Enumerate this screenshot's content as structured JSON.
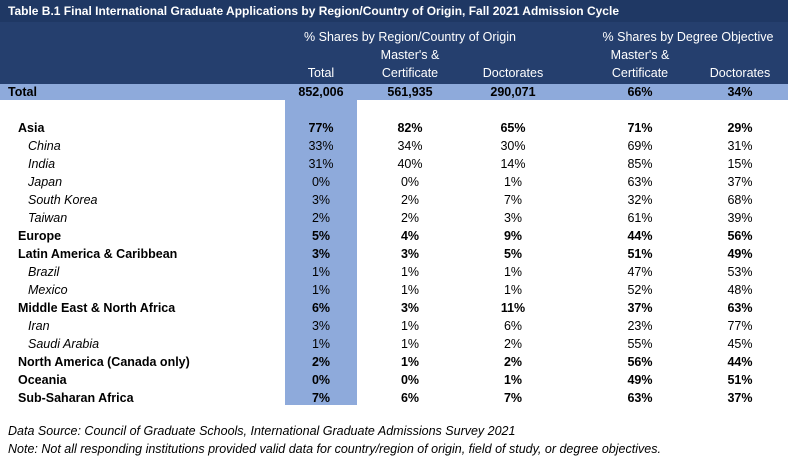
{
  "title": "Table B.1 Final International Graduate Applications by Region/Country of Origin, Fall 2021 Admission Cycle",
  "header": {
    "groups": [
      "% Shares by Region/Country of Origin",
      "% Shares by Degree Objective"
    ],
    "columns": [
      [
        "Total"
      ],
      [
        "Master's &",
        "Certificate"
      ],
      [
        "Doctorates"
      ],
      [
        "Master's &",
        "Certificate"
      ],
      [
        "Doctorates"
      ]
    ]
  },
  "total": {
    "label": "Total",
    "values": [
      "852,006",
      "561,935",
      "290,071",
      "66%",
      "34%"
    ]
  },
  "regions": [
    {
      "name": "Asia",
      "values": [
        "77%",
        "82%",
        "65%",
        "71%",
        "29%"
      ],
      "countries": [
        {
          "name": "China",
          "values": [
            "33%",
            "34%",
            "30%",
            "69%",
            "31%"
          ]
        },
        {
          "name": "India",
          "values": [
            "31%",
            "40%",
            "14%",
            "85%",
            "15%"
          ]
        },
        {
          "name": "Japan",
          "values": [
            "0%",
            "0%",
            "1%",
            "63%",
            "37%"
          ]
        },
        {
          "name": "South Korea",
          "values": [
            "3%",
            "2%",
            "7%",
            "32%",
            "68%"
          ]
        },
        {
          "name": "Taiwan",
          "values": [
            "2%",
            "2%",
            "3%",
            "61%",
            "39%"
          ]
        }
      ]
    },
    {
      "name": "Europe",
      "values": [
        "5%",
        "4%",
        "9%",
        "44%",
        "56%"
      ],
      "countries": []
    },
    {
      "name": "Latin America & Caribbean",
      "values": [
        "3%",
        "3%",
        "5%",
        "51%",
        "49%"
      ],
      "countries": [
        {
          "name": "Brazil",
          "values": [
            "1%",
            "1%",
            "1%",
            "47%",
            "53%"
          ]
        },
        {
          "name": "Mexico",
          "values": [
            "1%",
            "1%",
            "1%",
            "52%",
            "48%"
          ]
        }
      ]
    },
    {
      "name": "Middle East & North Africa",
      "values": [
        "6%",
        "3%",
        "11%",
        "37%",
        "63%"
      ],
      "countries": [
        {
          "name": "Iran",
          "values": [
            "3%",
            "1%",
            "6%",
            "23%",
            "77%"
          ]
        },
        {
          "name": "Saudi Arabia",
          "values": [
            "1%",
            "1%",
            "2%",
            "55%",
            "45%"
          ]
        }
      ]
    },
    {
      "name": "North America (Canada only)",
      "values": [
        "2%",
        "1%",
        "2%",
        "56%",
        "44%"
      ],
      "countries": []
    },
    {
      "name": "Oceania",
      "values": [
        "0%",
        "0%",
        "1%",
        "49%",
        "51%"
      ],
      "countries": []
    },
    {
      "name": "Sub-Saharan Africa",
      "values": [
        "7%",
        "6%",
        "7%",
        "63%",
        "37%"
      ],
      "countries": []
    }
  ],
  "notes": [
    "Data Source: Council of Graduate Schools, International Graduate Admissions Survey 2021",
    "Note: Not all responding institutions provided valid data for country/region of origin, field of study, or degree objectives."
  ]
}
